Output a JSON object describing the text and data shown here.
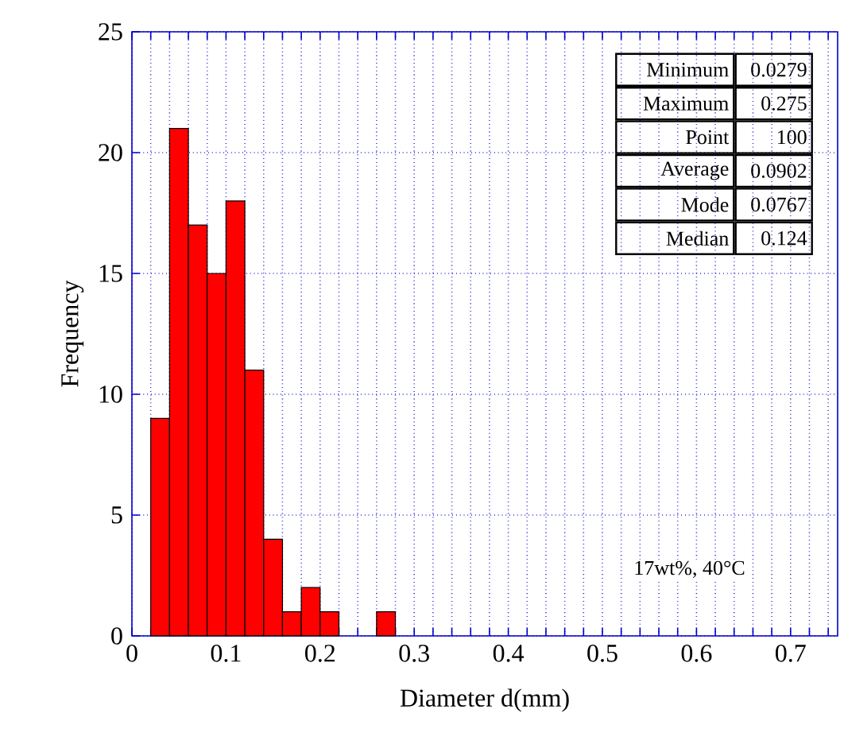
{
  "chart_data": {
    "type": "histogram",
    "xlabel": "Diameter  d(mm)",
    "ylabel": "Frequency",
    "bins": [
      0.02,
      0.04,
      0.06,
      0.08,
      0.1,
      0.12,
      0.14,
      0.16,
      0.18,
      0.2,
      0.22,
      0.24,
      0.26,
      0.28
    ],
    "values": [
      9,
      21,
      17,
      15,
      18,
      11,
      4,
      1,
      2,
      1,
      0,
      0,
      1
    ],
    "color": "#ff0000",
    "xlim": [
      0,
      0.75
    ],
    "ylim": [
      0,
      25
    ],
    "xticks": [
      0,
      {
        "value": 0.02,
        "label": null
      },
      {
        "value": 0.04,
        "label": null
      },
      {
        "value": 0.06,
        "label": null
      },
      {
        "value": 0.08,
        "label": null
      },
      0.1,
      {
        "value": 0.12,
        "label": null
      },
      {
        "value": 0.14,
        "label": null
      },
      {
        "value": 0.16,
        "label": null
      },
      {
        "value": 0.18,
        "label": null
      },
      0.2,
      {
        "value": 0.22,
        "label": null
      },
      {
        "value": 0.24,
        "label": null
      },
      {
        "value": 0.26,
        "label": null
      },
      {
        "value": 0.28,
        "label": null
      },
      0.3,
      {
        "value": 0.32,
        "label": null
      },
      {
        "value": 0.34,
        "label": null
      },
      {
        "value": 0.36,
        "label": null
      },
      {
        "value": 0.38,
        "label": null
      },
      0.4,
      {
        "value": 0.42,
        "label": null
      },
      {
        "value": 0.44,
        "label": null
      },
      {
        "value": 0.46,
        "label": null
      },
      {
        "value": 0.48,
        "label": null
      },
      0.5,
      {
        "value": 0.52,
        "label": null
      },
      {
        "value": 0.54,
        "label": null
      },
      {
        "value": 0.56,
        "label": null
      },
      {
        "value": 0.58,
        "label": null
      },
      0.6,
      {
        "value": 0.62,
        "label": null
      },
      {
        "value": 0.64,
        "label": null
      },
      {
        "value": 0.66,
        "label": null
      },
      {
        "value": 0.68,
        "label": null
      },
      0.7,
      {
        "value": 0.72,
        "label": null
      },
      {
        "value": 0.74,
        "label": null
      }
    ],
    "yticks": [
      0,
      5,
      10,
      15,
      20,
      25
    ],
    "grid": true,
    "annotations": [
      "Minimum",
      "0.0279",
      "Maximum",
      "0.275",
      "Point",
      "100",
      "Average",
      "0.0902",
      "Mode",
      "0.0767",
      "Median",
      "0.124",
      "17wt%, 40°C"
    ]
  }
}
